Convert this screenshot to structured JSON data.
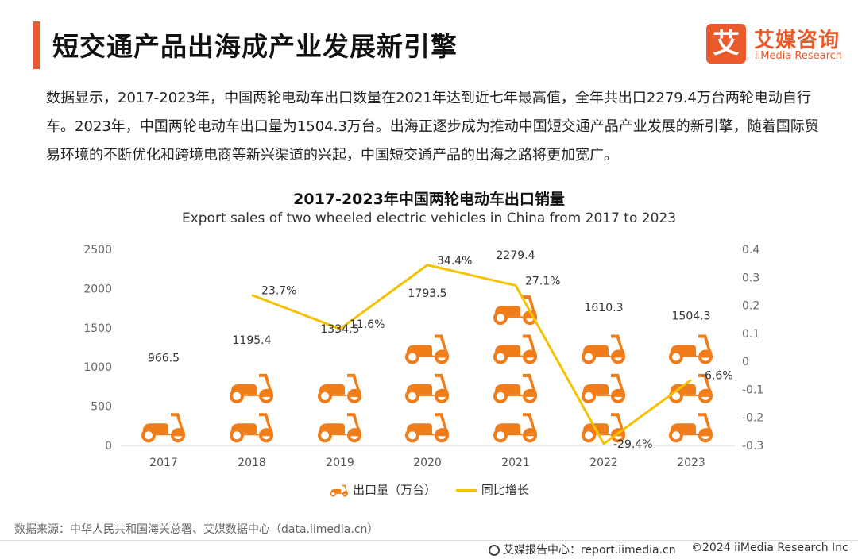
{
  "header": {
    "title": "短交通产品出海成产业发展新引擎",
    "logo_mark": "艾",
    "logo_cn": "艾媒咨询",
    "logo_en": "iiMedia Research"
  },
  "description": "数据显示，2017-2023年，中国两轮电动车出口数量在2021年达到近七年最高值，全年共出口2279.4万台两轮电动自行车。2023年，中国两轮电动车出口量为1504.3万台。出海正逐步成为推动中国短交通产品产业发展的新引擎，随着国际贸易环境的不断优化和跨境电商等新兴渠道的兴起，中国短交通产品的出海之路将更加宽广。",
  "chart_data": {
    "type": "bar",
    "title": "2017-2023年中国两轮电动车出口销量",
    "subtitle": "Export sales of two wheeled electric vehicles in China from 2017 to 2023",
    "categories": [
      "2017",
      "2018",
      "2019",
      "2020",
      "2021",
      "2022",
      "2023"
    ],
    "series": [
      {
        "name": "出口量（万台）",
        "type": "pictorial-bar",
        "axis": "left",
        "values": [
          966.5,
          1195.4,
          1334.5,
          1793.5,
          2279.4,
          1610.3,
          1504.3
        ]
      },
      {
        "name": "同比增长",
        "type": "line",
        "axis": "right",
        "values": [
          null,
          0.237,
          0.116,
          0.344,
          0.271,
          -0.294,
          -0.066
        ],
        "labels": [
          "",
          "23.7%",
          "11.6%",
          "34.4%",
          "27.1%",
          "-29.4%",
          "-6.6%"
        ]
      }
    ],
    "y_left": {
      "min": 0,
      "max": 2500,
      "ticks": [
        "0",
        "500",
        "1000",
        "1500",
        "2000",
        "2500"
      ]
    },
    "y_right": {
      "min": -0.3,
      "max": 0.4,
      "ticks": [
        "-0.3",
        "-0.2",
        "-0.1",
        "0",
        "0.1",
        "0.2",
        "0.3",
        "0.4"
      ]
    },
    "legend": [
      "出口量（万台）",
      "同比增长"
    ],
    "colors": {
      "bar": "#f07d1a",
      "line": "#f6c200"
    }
  },
  "footer": {
    "source": "数据来源：中华人民共和国海关总署、艾媒数据中心（data.iimedia.cn）",
    "report": "艾媒报告中心：report.iimedia.cn",
    "copyright": "©2024  iiMedia Research  Inc"
  }
}
